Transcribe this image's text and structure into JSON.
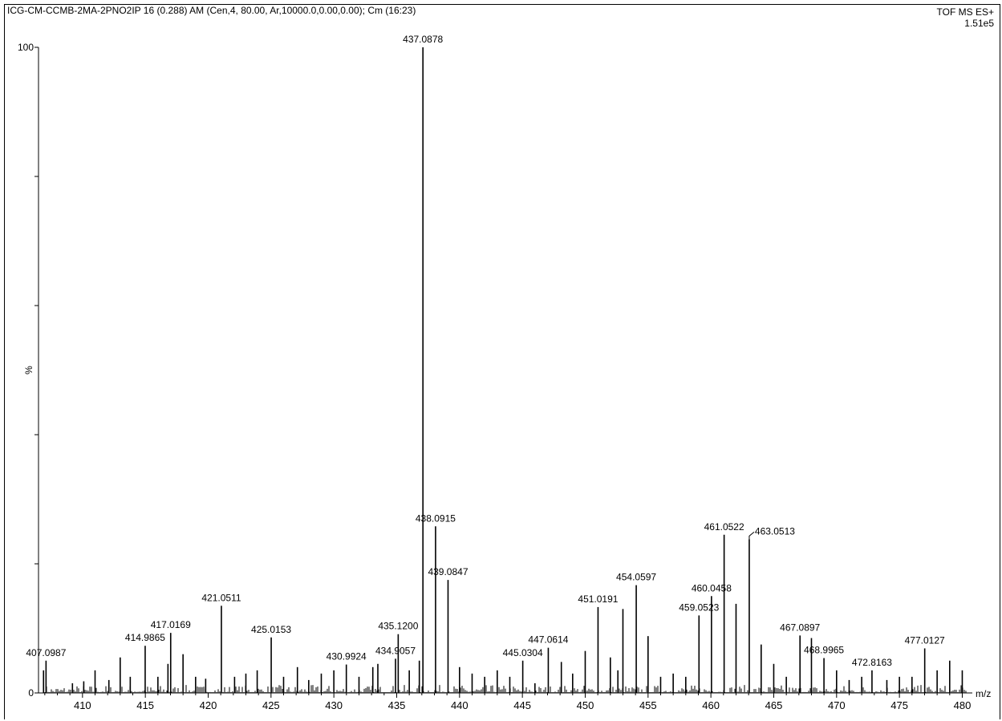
{
  "header": {
    "title": "ICG-CM-CCMB-2MA-2PNO2IP 16 (0.288) AM (Cen,4, 80.00, Ar,10000.0,0.00,0.00); Cm (16:23)",
    "mode": "TOF MS ES+",
    "intensity": "1.51e5"
  },
  "chart_data": {
    "type": "bar",
    "xlabel": "m/z",
    "ylabel": "%",
    "xlim": [
      406.5,
      480.8
    ],
    "ylim": [
      0,
      100
    ],
    "x_ticks": [
      "410",
      "415",
      "420",
      "425",
      "430",
      "435",
      "440",
      "445",
      "450",
      "455",
      "460",
      "465",
      "470",
      "475",
      "480"
    ],
    "y_ticks": [
      "0",
      "100"
    ],
    "peaks": [
      {
        "mz": 406.9,
        "value": 3.5
      },
      {
        "mz": 407.0987,
        "value": 5.0,
        "label": "407.0987"
      },
      {
        "mz": 409.2,
        "value": 1.5
      },
      {
        "mz": 410.1,
        "value": 1.8
      },
      {
        "mz": 411.0,
        "value": 3.5
      },
      {
        "mz": 412.1,
        "value": 2.0
      },
      {
        "mz": 413.0,
        "value": 5.5
      },
      {
        "mz": 413.8,
        "value": 2.5
      },
      {
        "mz": 414.9865,
        "value": 7.3,
        "label": "414.9865"
      },
      {
        "mz": 416.0,
        "value": 2.5
      },
      {
        "mz": 416.8,
        "value": 4.5
      },
      {
        "mz": 417.0169,
        "value": 9.3,
        "label": "417.0169"
      },
      {
        "mz": 418.0,
        "value": 6.0
      },
      {
        "mz": 419.0,
        "value": 2.5
      },
      {
        "mz": 419.8,
        "value": 2.2
      },
      {
        "mz": 421.0511,
        "value": 13.5,
        "label": "421.0511"
      },
      {
        "mz": 422.1,
        "value": 2.5
      },
      {
        "mz": 423.0,
        "value": 3.0
      },
      {
        "mz": 423.9,
        "value": 3.5
      },
      {
        "mz": 425.0153,
        "value": 8.6,
        "label": "425.0153"
      },
      {
        "mz": 426.0,
        "value": 2.5
      },
      {
        "mz": 427.1,
        "value": 4.0
      },
      {
        "mz": 428.0,
        "value": 2.0
      },
      {
        "mz": 429.0,
        "value": 3.0
      },
      {
        "mz": 430.0,
        "value": 3.5
      },
      {
        "mz": 430.9924,
        "value": 4.4,
        "label": "430.9924"
      },
      {
        "mz": 432.0,
        "value": 2.5
      },
      {
        "mz": 433.1,
        "value": 4.0
      },
      {
        "mz": 433.5,
        "value": 4.5
      },
      {
        "mz": 434.9057,
        "value": 5.3,
        "label": "434.9057"
      },
      {
        "mz": 435.12,
        "value": 9.1,
        "label": "435.1200"
      },
      {
        "mz": 436.0,
        "value": 3.5
      },
      {
        "mz": 436.8,
        "value": 5.0
      },
      {
        "mz": 437.0878,
        "value": 100,
        "label": "437.0878"
      },
      {
        "mz": 438.0915,
        "value": 25.8,
        "label": "438.0915"
      },
      {
        "mz": 439.0847,
        "value": 17.5,
        "label": "439.0847"
      },
      {
        "mz": 440.0,
        "value": 4.0
      },
      {
        "mz": 441.0,
        "value": 3.0
      },
      {
        "mz": 442.0,
        "value": 2.5
      },
      {
        "mz": 443.0,
        "value": 3.5
      },
      {
        "mz": 444.0,
        "value": 2.5
      },
      {
        "mz": 445.0304,
        "value": 5.0,
        "label": "445.0304"
      },
      {
        "mz": 446.0,
        "value": 1.5
      },
      {
        "mz": 447.0614,
        "value": 7.0,
        "label": "447.0614"
      },
      {
        "mz": 448.1,
        "value": 4.8
      },
      {
        "mz": 449.0,
        "value": 3.0
      },
      {
        "mz": 450.0,
        "value": 6.5
      },
      {
        "mz": 451.0191,
        "value": 13.3,
        "label": "451.0191"
      },
      {
        "mz": 452.0,
        "value": 5.5
      },
      {
        "mz": 452.6,
        "value": 3.5
      },
      {
        "mz": 453.0,
        "value": 13.0
      },
      {
        "mz": 454.0597,
        "value": 16.7,
        "label": "454.0597"
      },
      {
        "mz": 455.0,
        "value": 8.8
      },
      {
        "mz": 456.0,
        "value": 2.5
      },
      {
        "mz": 457.0,
        "value": 3.0
      },
      {
        "mz": 458.0,
        "value": 2.5
      },
      {
        "mz": 459.0523,
        "value": 12.0,
        "label": "459.0523"
      },
      {
        "mz": 460.0458,
        "value": 15.0,
        "label": "460.0458"
      },
      {
        "mz": 461.0522,
        "value": 24.5,
        "label": "461.0522"
      },
      {
        "mz": 462.0,
        "value": 13.8
      },
      {
        "mz": 463.0513,
        "value": 23.8,
        "label": "463.0513"
      },
      {
        "mz": 464.0,
        "value": 7.5
      },
      {
        "mz": 465.0,
        "value": 4.5
      },
      {
        "mz": 466.0,
        "value": 2.5
      },
      {
        "mz": 467.0897,
        "value": 8.9,
        "label": "467.0897"
      },
      {
        "mz": 468.0,
        "value": 8.5
      },
      {
        "mz": 468.9965,
        "value": 5.4,
        "label": "468.9965"
      },
      {
        "mz": 470.0,
        "value": 3.5
      },
      {
        "mz": 471.0,
        "value": 2.0
      },
      {
        "mz": 472.0,
        "value": 2.5
      },
      {
        "mz": 472.8163,
        "value": 3.5,
        "label": "472.8163"
      },
      {
        "mz": 474.0,
        "value": 2.0
      },
      {
        "mz": 475.0,
        "value": 2.5
      },
      {
        "mz": 476.0,
        "value": 2.5
      },
      {
        "mz": 477.0127,
        "value": 6.9,
        "label": "477.0127"
      },
      {
        "mz": 478.0,
        "value": 3.5
      },
      {
        "mz": 479.0,
        "value": 5.0
      },
      {
        "mz": 480.0,
        "value": 3.5
      }
    ]
  }
}
